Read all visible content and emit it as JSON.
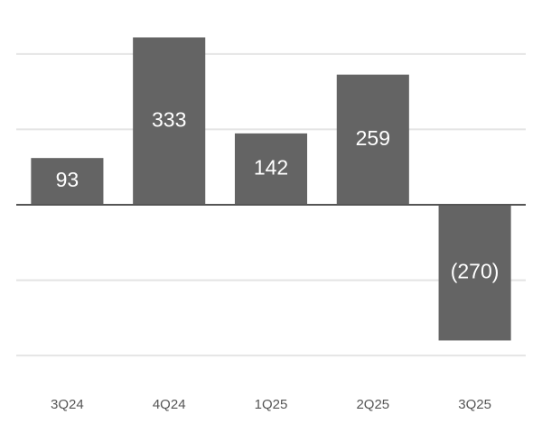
{
  "chart_data": {
    "type": "bar",
    "categories": [
      "3Q24",
      "4Q24",
      "1Q25",
      "2Q25",
      "3Q25"
    ],
    "values": [
      93,
      333,
      142,
      259,
      -270
    ],
    "value_labels": [
      "93",
      "333",
      "142",
      "259",
      "(270)"
    ],
    "color": "#646464",
    "ylim": [
      -350,
      350
    ],
    "yticks": [
      -300,
      -150,
      0,
      150,
      300
    ],
    "grid": true
  }
}
